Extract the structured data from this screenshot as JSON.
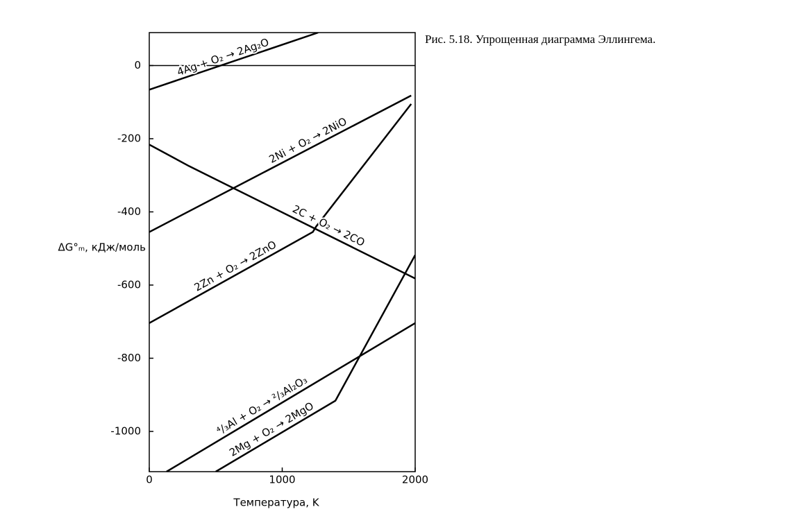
{
  "chart_data": {
    "type": "line",
    "caption": "Рис. 5.18. Упрощенная диаграмма Эллингема.",
    "xlabel": "Температура, K",
    "ylabel": "ΔG°ₘ, кДж/моль",
    "xlim": [
      0,
      2000
    ],
    "xticks": [
      0,
      1000,
      2000
    ],
    "ylim": [
      -1110,
      90
    ],
    "yticks": [
      0,
      -200,
      -400,
      -600,
      -800,
      -1000
    ],
    "color": "#000000",
    "series": [
      {
        "name": "4Ag + O₂ → 2Ag₂O",
        "x": [
          0,
          1270
        ],
        "values": [
          -66,
          90
        ]
      },
      {
        "name": "2Ni + O₂ → 2NiO",
        "x": [
          0,
          1970
        ],
        "values": [
          -455,
          -82
        ]
      },
      {
        "name": "2C + O₂ → 2CO",
        "x": [
          0,
          300,
          2000
        ],
        "values": [
          -216,
          -275,
          -582
        ]
      },
      {
        "name": "2Zn + O₂ → 2ZnO",
        "x": [
          0,
          1230,
          1255,
          1970
        ],
        "values": [
          -704,
          -455,
          -440,
          -105
        ]
      },
      {
        "name": "⁴/₃Al + O₂ → ²/₃Al₂O₃",
        "x": [
          130,
          2000
        ],
        "values": [
          -1110,
          -704
        ]
      },
      {
        "name": "2Mg + O₂ → 2MgO",
        "x": [
          500,
          1400,
          2000
        ],
        "values": [
          -1110,
          -916,
          -518
        ]
      }
    ]
  }
}
